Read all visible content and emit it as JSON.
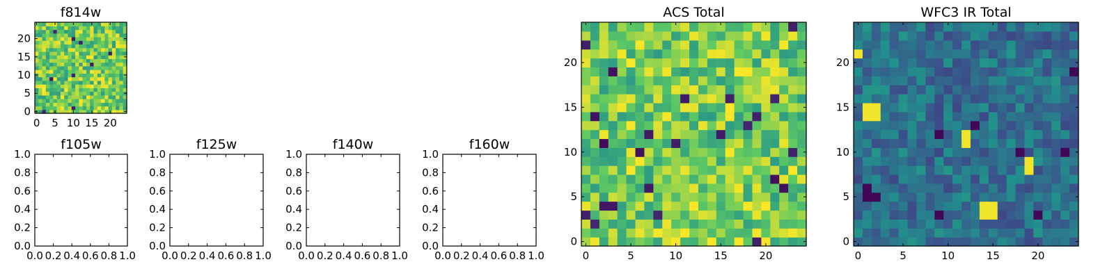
{
  "chart_data": [
    {
      "id": "f814w",
      "type": "heatmap",
      "title": "f814w",
      "xlim": [
        -0.5,
        24.5
      ],
      "ylim": [
        -0.5,
        24.5
      ],
      "xticks": [
        0,
        5,
        10,
        15,
        20
      ],
      "yticks": [
        0,
        5,
        10,
        15,
        20
      ],
      "xtick_labels": [
        "0",
        "5",
        "10",
        "15",
        "20"
      ],
      "ytick_labels": [
        "0",
        "5",
        "10",
        "15",
        "20"
      ],
      "grid_size": 25,
      "colormap": "viridis",
      "seed": 814,
      "density_high": 0.85
    },
    {
      "id": "f105w",
      "type": "empty",
      "title": "f105w",
      "xlim": [
        0,
        1
      ],
      "ylim": [
        0,
        1
      ],
      "xticks": [
        0,
        0.2,
        0.4,
        0.6,
        0.8,
        1.0
      ],
      "yticks": [
        0,
        0.2,
        0.4,
        0.6,
        0.8,
        1.0
      ],
      "xtick_labels": [
        "0.0",
        "0.2",
        "0.4",
        "0.6",
        "0.8",
        "1.0"
      ],
      "ytick_labels": [
        "0.0",
        "0.2",
        "0.4",
        "0.6",
        "0.8",
        "1.0"
      ]
    },
    {
      "id": "f125w",
      "type": "empty",
      "title": "f125w",
      "xlim": [
        0,
        1
      ],
      "ylim": [
        0,
        1
      ],
      "xticks": [
        0,
        0.2,
        0.4,
        0.6,
        0.8,
        1.0
      ],
      "yticks": [
        0,
        0.2,
        0.4,
        0.6,
        0.8,
        1.0
      ],
      "xtick_labels": [
        "0.0",
        "0.2",
        "0.4",
        "0.6",
        "0.8",
        "1.0"
      ],
      "ytick_labels": [
        "0.0",
        "0.2",
        "0.4",
        "0.6",
        "0.8",
        "1.0"
      ]
    },
    {
      "id": "f140w",
      "type": "empty",
      "title": "f140w",
      "xlim": [
        0,
        1
      ],
      "ylim": [
        0,
        1
      ],
      "xticks": [
        0,
        0.2,
        0.4,
        0.6,
        0.8,
        1.0
      ],
      "yticks": [
        0,
        0.2,
        0.4,
        0.6,
        0.8,
        1.0
      ],
      "xtick_labels": [
        "0.0",
        "0.2",
        "0.4",
        "0.6",
        "0.8",
        "1.0"
      ],
      "ytick_labels": [
        "0.0",
        "0.2",
        "0.4",
        "0.6",
        "0.8",
        "1.0"
      ]
    },
    {
      "id": "f160w",
      "type": "empty",
      "title": "f160w",
      "xlim": [
        0,
        1
      ],
      "ylim": [
        0,
        1
      ],
      "xticks": [
        0,
        0.2,
        0.4,
        0.6,
        0.8,
        1.0
      ],
      "yticks": [
        0,
        0.2,
        0.4,
        0.6,
        0.8,
        1.0
      ],
      "xtick_labels": [
        "0.0",
        "0.2",
        "0.4",
        "0.6",
        "0.8",
        "1.0"
      ],
      "ytick_labels": [
        "0.0",
        "0.2",
        "0.4",
        "0.6",
        "0.8",
        "1.0"
      ]
    },
    {
      "id": "acs-total",
      "type": "heatmap",
      "title": "ACS Total",
      "xlim": [
        -0.5,
        24.5
      ],
      "ylim": [
        -0.5,
        24.5
      ],
      "xticks": [
        0,
        5,
        10,
        15,
        20
      ],
      "yticks": [
        0,
        5,
        10,
        15,
        20
      ],
      "xtick_labels": [
        "0",
        "5",
        "10",
        "15",
        "20"
      ],
      "ytick_labels": [
        "0",
        "5",
        "10",
        "15",
        "20"
      ],
      "grid_size": 25,
      "colormap": "viridis",
      "seed": 1234,
      "density_high": 0.85
    },
    {
      "id": "wfc3-ir-total",
      "type": "heatmap",
      "title": "WFC3 IR Total",
      "xlim": [
        -0.5,
        24.5
      ],
      "ylim": [
        -0.5,
        24.5
      ],
      "xticks": [
        0,
        5,
        10,
        15,
        20
      ],
      "yticks": [
        0,
        5,
        10,
        15,
        20
      ],
      "xtick_labels": [
        "0",
        "5",
        "10",
        "15",
        "20"
      ],
      "ytick_labels": [
        "0",
        "5",
        "10",
        "15",
        "20"
      ],
      "grid_size": 25,
      "colormap": "viridis",
      "seed": 4242,
      "density_high": 0.35,
      "bright_cells": [
        [
          0,
          21
        ],
        [
          1,
          14
        ],
        [
          1,
          15
        ],
        [
          2,
          14
        ],
        [
          2,
          15
        ],
        [
          12,
          11
        ],
        [
          12,
          12
        ],
        [
          14,
          3
        ],
        [
          14,
          4
        ],
        [
          15,
          3
        ],
        [
          15,
          4
        ],
        [
          19,
          8
        ],
        [
          19,
          9
        ]
      ],
      "dark_cells": [
        [
          1,
          5
        ],
        [
          1,
          6
        ],
        [
          2,
          5
        ],
        [
          9,
          3
        ],
        [
          9,
          12
        ],
        [
          13,
          13
        ],
        [
          18,
          10
        ],
        [
          20,
          3
        ],
        [
          23,
          10
        ],
        [
          24,
          19
        ]
      ]
    }
  ]
}
